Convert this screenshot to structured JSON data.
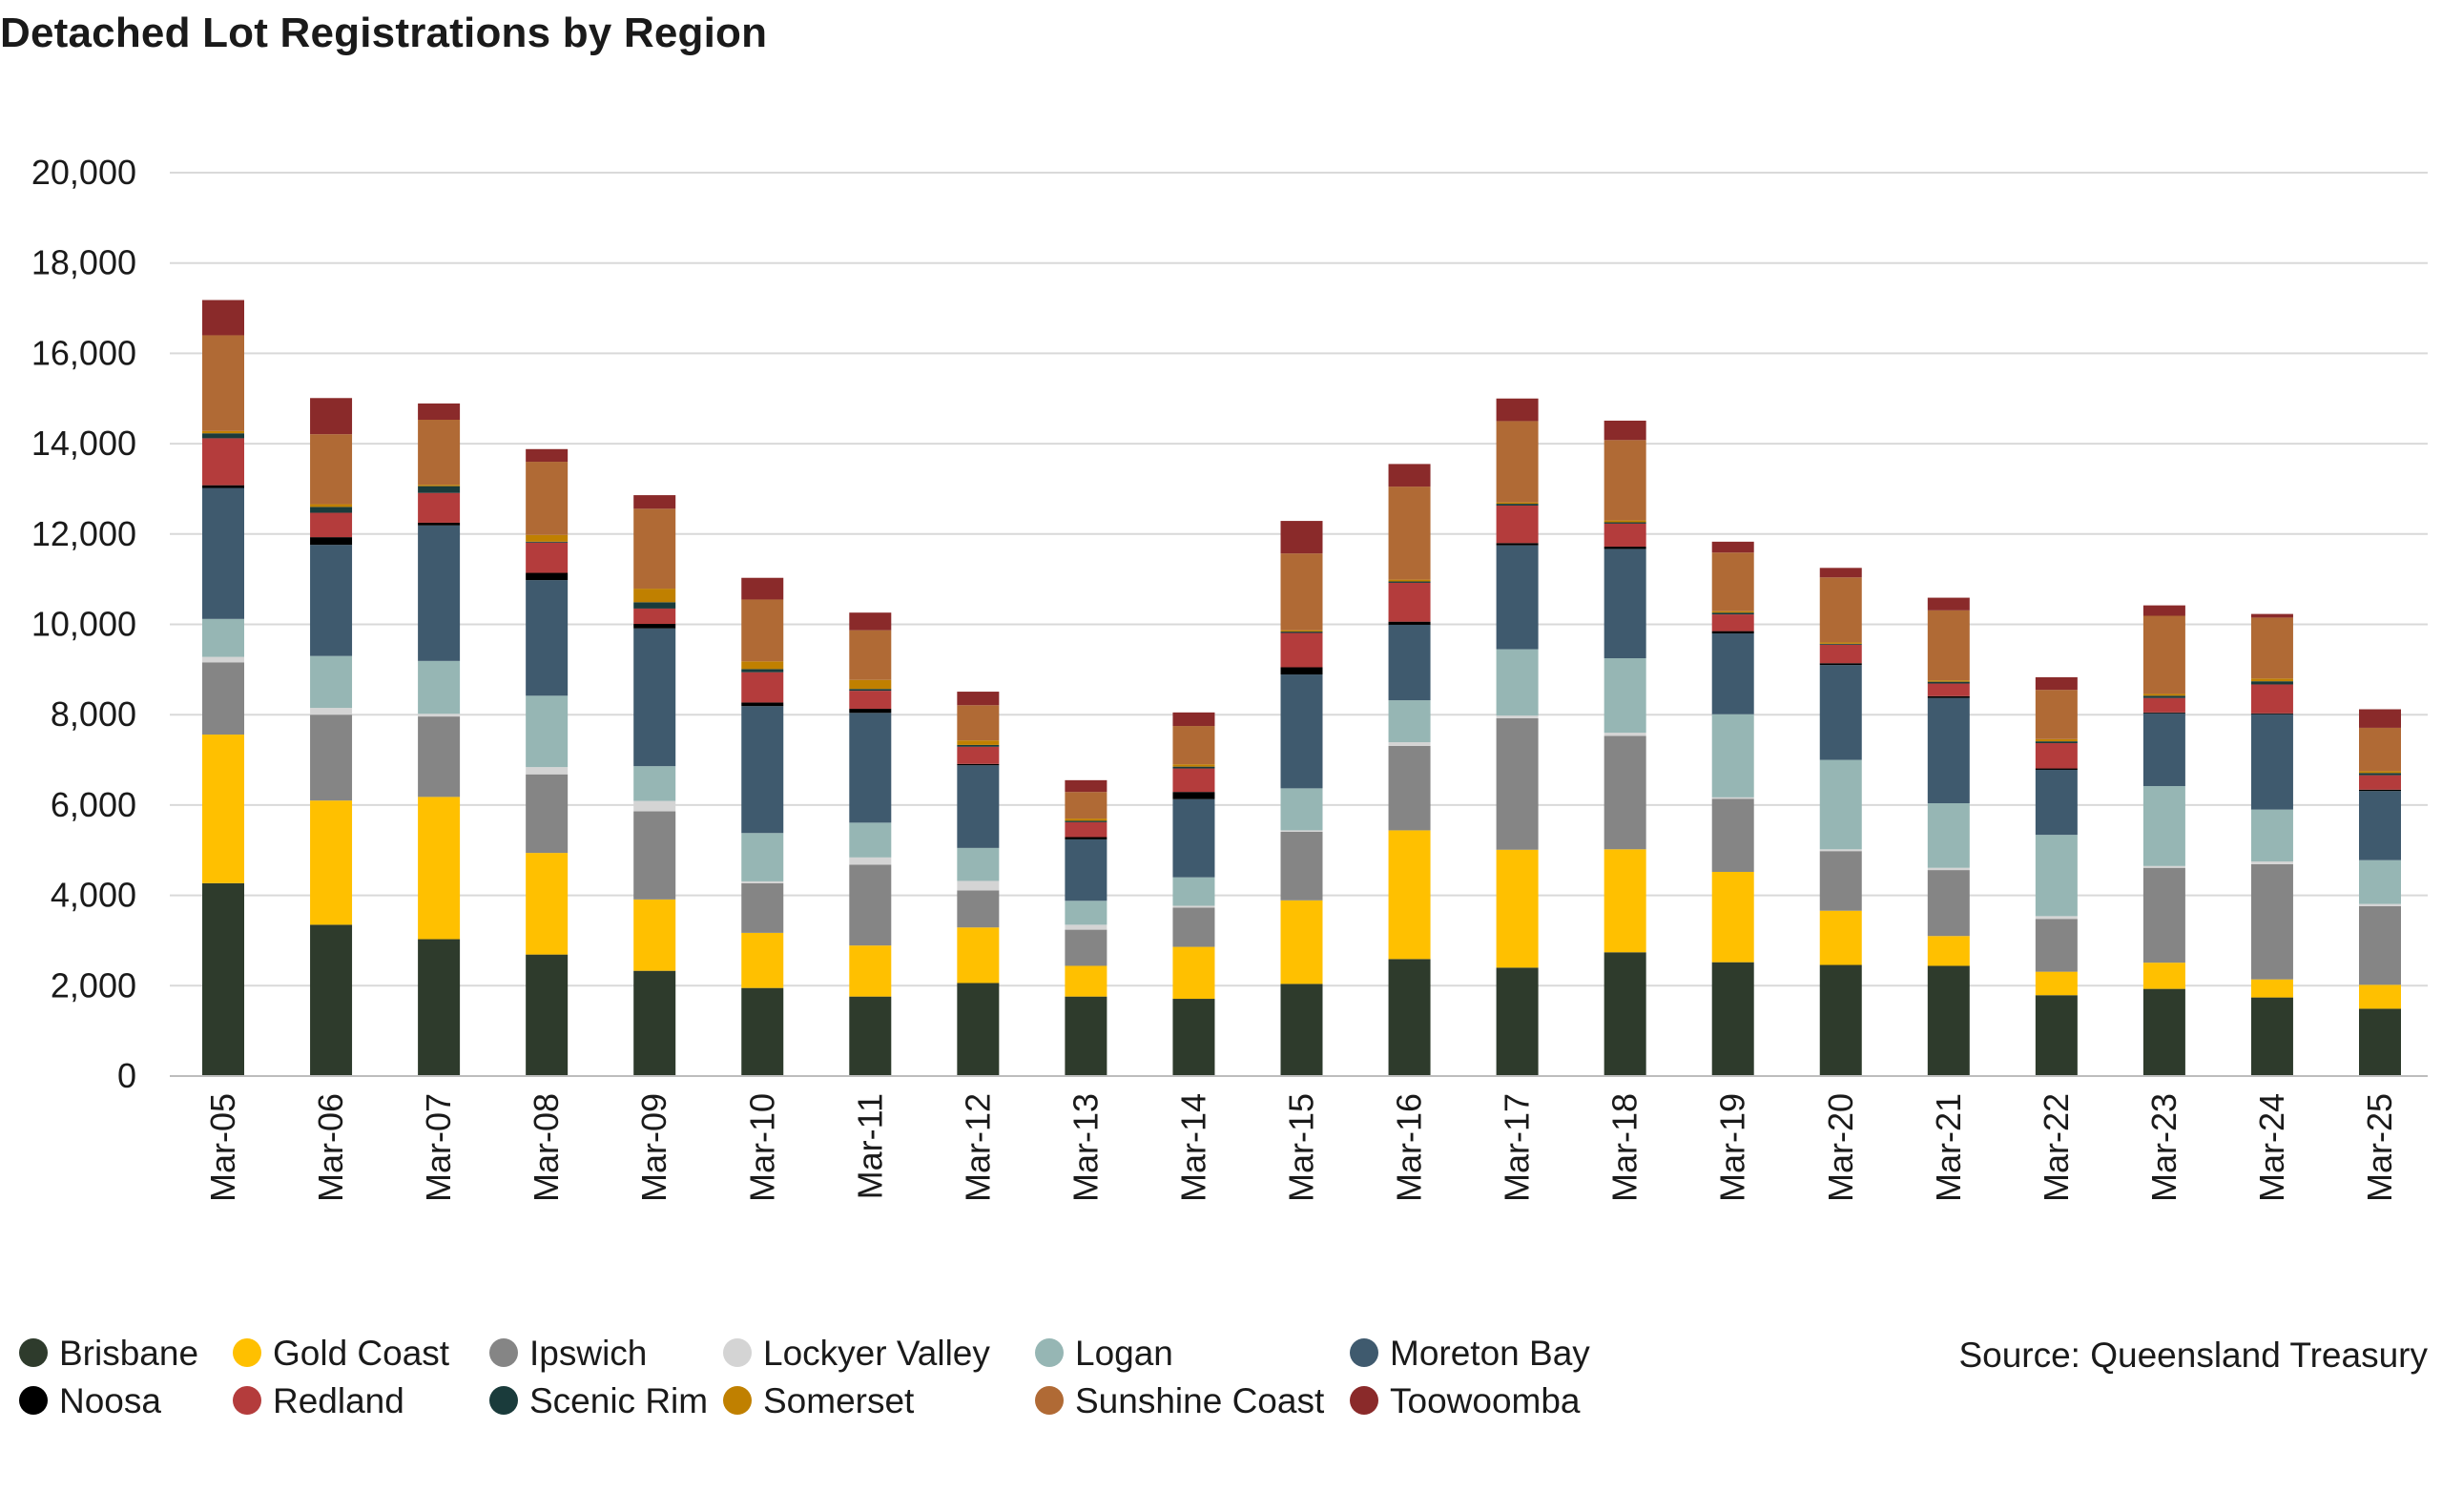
{
  "chart_data": {
    "type": "bar",
    "stacked": true,
    "title": "Detached Lot Registrations by Region",
    "source": "Source: Queensland Treasury",
    "ylim": [
      0,
      20000
    ],
    "yticks": [
      "0",
      "2,000",
      "4,000",
      "6,000",
      "8,000",
      "10,000",
      "12,000",
      "14,000",
      "16,000",
      "18,000",
      "20,000"
    ],
    "ytick_values": [
      0,
      2000,
      4000,
      6000,
      8000,
      10000,
      12000,
      14000,
      16000,
      18000,
      20000
    ],
    "grid": true,
    "legend_position": "bottom",
    "categories": [
      "Mar-05",
      "Mar-06",
      "Mar-07",
      "Mar-08",
      "Mar-09",
      "Mar-10",
      "Mar-11",
      "Mar-12",
      "Mar-13",
      "Mar-14",
      "Mar-15",
      "Mar-16",
      "Mar-17",
      "Mar-18",
      "Mar-19",
      "Mar-20",
      "Mar-21",
      "Mar-22",
      "Mar-23",
      "Mar-24",
      "Mar-25"
    ],
    "series": [
      {
        "name": "Brisbane",
        "color": "#2e3b2c",
        "values": [
          4270,
          3350,
          3030,
          2690,
          2330,
          1950,
          1760,
          2060,
          1760,
          1710,
          2040,
          2590,
          2400,
          2740,
          2520,
          2460,
          2440,
          1790,
          1930,
          1740,
          1490
        ]
      },
      {
        "name": "Gold Coast",
        "color": "#ffc000",
        "values": [
          3290,
          2750,
          3150,
          2250,
          1580,
          1220,
          1130,
          1230,
          680,
          1150,
          1850,
          2850,
          2610,
          2280,
          2000,
          1200,
          660,
          520,
          580,
          400,
          530
        ]
      },
      {
        "name": "Ipswich",
        "color": "#858585",
        "values": [
          1600,
          1900,
          1780,
          1740,
          1950,
          1100,
          1790,
          820,
          800,
          870,
          1520,
          1870,
          2910,
          2510,
          1620,
          1320,
          1460,
          1170,
          2100,
          2550,
          1740
        ]
      },
      {
        "name": "Lockyer Valley",
        "color": "#d4d4d4",
        "values": [
          120,
          150,
          60,
          160,
          230,
          40,
          160,
          210,
          110,
          40,
          30,
          80,
          60,
          70,
          30,
          40,
          50,
          60,
          40,
          60,
          50
        ]
      },
      {
        "name": "Logan",
        "color": "#96b6b4",
        "values": [
          840,
          1150,
          1170,
          1580,
          770,
          1070,
          770,
          730,
          530,
          630,
          930,
          930,
          1470,
          1650,
          1840,
          1980,
          1430,
          1800,
          1770,
          1150,
          970
        ]
      },
      {
        "name": "Moreton Bay",
        "color": "#3f5a6e",
        "values": [
          2900,
          2460,
          3000,
          2560,
          3050,
          2810,
          2430,
          1830,
          1360,
          1730,
          2520,
          1670,
          2300,
          2420,
          1790,
          2100,
          2330,
          1440,
          1610,
          2110,
          1530
        ]
      },
      {
        "name": "Noosa",
        "color": "#000000",
        "values": [
          60,
          170,
          60,
          160,
          100,
          80,
          90,
          30,
          50,
          160,
          160,
          70,
          50,
          50,
          50,
          40,
          40,
          30,
          20,
          20,
          30
        ]
      },
      {
        "name": "Redland",
        "color": "#b43c3c",
        "values": [
          1040,
          540,
          660,
          670,
          340,
          670,
          400,
          380,
          330,
          520,
          760,
          860,
          830,
          510,
          370,
          410,
          280,
          560,
          320,
          640,
          320
        ]
      },
      {
        "name": "Scenic Rim",
        "color": "#1a3b3b",
        "values": [
          110,
          130,
          150,
          20,
          140,
          70,
          40,
          40,
          30,
          40,
          30,
          30,
          40,
          30,
          40,
          20,
          40,
          40,
          50,
          70,
          50
        ]
      },
      {
        "name": "Somerset",
        "color": "#c08000",
        "values": [
          50,
          60,
          30,
          150,
          300,
          170,
          200,
          100,
          50,
          50,
          30,
          40,
          30,
          40,
          30,
          30,
          30,
          50,
          40,
          60,
          40
        ]
      },
      {
        "name": "Sunshine Coast",
        "color": "#b06a35",
        "values": [
          2120,
          1550,
          1440,
          1620,
          1770,
          1370,
          1100,
          780,
          590,
          850,
          1700,
          2060,
          1800,
          1780,
          1300,
          1440,
          1550,
          1090,
          1730,
          1350,
          960
        ]
      },
      {
        "name": "Toowoomba",
        "color": "#8a2a2a",
        "values": [
          780,
          800,
          360,
          280,
          300,
          480,
          390,
          300,
          260,
          300,
          720,
          500,
          500,
          430,
          240,
          210,
          280,
          280,
          230,
          80,
          410
        ]
      }
    ]
  }
}
